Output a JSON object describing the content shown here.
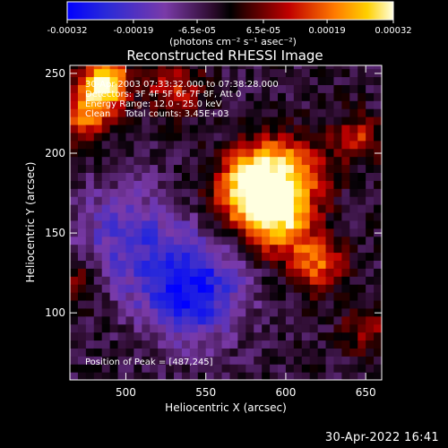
{
  "colorbar": {
    "tick_labels": [
      "-0.00032",
      "-0.00019",
      "-6.5e-05",
      "6.5e-05",
      "0.00019",
      "0.00032"
    ],
    "unit_label": "(photons cm⁻² s⁻¹ asec⁻²)",
    "range": [
      -0.00032,
      0.00032
    ]
  },
  "chart_data": {
    "type": "heatmap",
    "title": "Reconstructed RHESSI Image",
    "xlabel": "Heliocentric X (arcsec)",
    "ylabel": "Heliocentric Y (arcsec)",
    "xlim": [
      465,
      660
    ],
    "ylim": [
      58,
      255
    ],
    "x_ticks": [
      500,
      550,
      600,
      650
    ],
    "y_ticks": [
      100,
      150,
      200,
      250
    ],
    "annotations": [
      "30-Apr-2003 07:33:32.000 to 07:38:28.000",
      "Detectors: 3F 4F 5F 6F 7F 8F, Att 0",
      "Energy Range: 12.0 - 25.0 keV",
      "Clean     Total counts: 3.45E+03"
    ],
    "peak_label": "Position of Peak = [487,245]",
    "peak": [
      487,
      245
    ],
    "sources": [
      {
        "x": 595,
        "y": 160,
        "amp": 0.9,
        "sigma": 16
      },
      {
        "x": 573,
        "y": 177,
        "amp": 0.75,
        "sigma": 14
      },
      {
        "x": 608,
        "y": 190,
        "amp": 0.55,
        "sigma": 14
      },
      {
        "x": 585,
        "y": 195,
        "amp": 0.5,
        "sigma": 12
      },
      {
        "x": 487,
        "y": 245,
        "amp": 1.0,
        "sigma": 10
      },
      {
        "x": 475,
        "y": 225,
        "amp": 0.6,
        "sigma": 12
      },
      {
        "x": 530,
        "y": 240,
        "amp": 0.45,
        "sigma": 12
      },
      {
        "x": 620,
        "y": 130,
        "amp": 0.55,
        "sigma": 12
      },
      {
        "x": 645,
        "y": 210,
        "amp": 0.45,
        "sigma": 10
      },
      {
        "x": 650,
        "y": 90,
        "amp": 0.35,
        "sigma": 10
      },
      {
        "x": 470,
        "y": 120,
        "amp": 0.3,
        "sigma": 10
      },
      {
        "x": 540,
        "y": 115,
        "amp": -0.7,
        "sigma": 22
      },
      {
        "x": 500,
        "y": 150,
        "amp": -0.4,
        "sigma": 22
      }
    ]
  },
  "footer": {
    "timestamp": "30-Apr-2022 16:41"
  }
}
